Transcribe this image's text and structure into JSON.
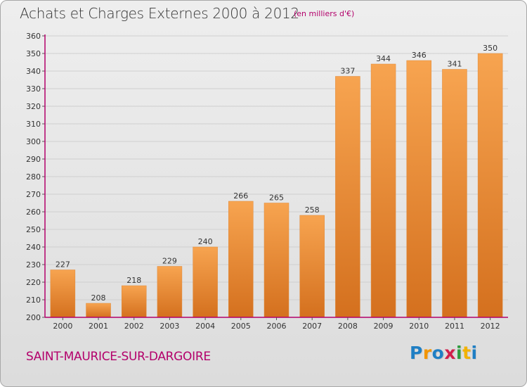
{
  "title": "Achats et Charges Externes 2000 à 2012",
  "subtitle": "(en milliers d'€)",
  "commune": "SAINT-MAURICE-SUR-DARGOIRE",
  "logo": {
    "letters": [
      "P",
      "r",
      "o",
      "x",
      "i",
      "t",
      "i"
    ],
    "colors": [
      "#1f7fc4",
      "#f29500",
      "#1f7fc4",
      "#d01f4a",
      "#2e9b3e",
      "#f2b200",
      "#1f7fc4"
    ]
  },
  "colors": {
    "bar_light": "#f7a14f",
    "bar_dark": "#d56e1b",
    "axis_accent": "#b3006b",
    "grid": "#cfcfcf"
  },
  "chart_data": {
    "type": "bar",
    "title": "Achats et Charges Externes 2000 à 2012",
    "subtitle": "(en milliers d'€)",
    "categories": [
      "2000",
      "2001",
      "2002",
      "2003",
      "2004",
      "2005",
      "2006",
      "2007",
      "2008",
      "2009",
      "2010",
      "2011",
      "2012"
    ],
    "values": [
      227,
      208,
      218,
      229,
      240,
      266,
      265,
      258,
      337,
      344,
      346,
      341,
      350
    ],
    "ylim": [
      200,
      360
    ],
    "yticks": [
      200,
      210,
      220,
      230,
      240,
      250,
      260,
      270,
      280,
      290,
      300,
      310,
      320,
      330,
      340,
      350,
      360
    ],
    "grid": true,
    "data_labels": true
  }
}
